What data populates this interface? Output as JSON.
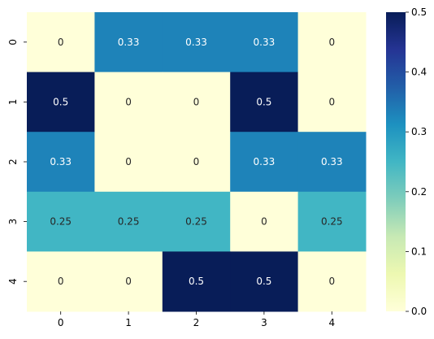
{
  "chart_data": {
    "type": "heatmap",
    "x_categories": [
      "0",
      "1",
      "2",
      "3",
      "4"
    ],
    "y_categories": [
      "0",
      "1",
      "2",
      "3",
      "4"
    ],
    "values": [
      [
        0,
        0.33,
        0.33,
        0.33,
        0
      ],
      [
        0.5,
        0,
        0,
        0.5,
        0
      ],
      [
        0.33,
        0,
        0,
        0.33,
        0.33
      ],
      [
        0.25,
        0.25,
        0.25,
        0,
        0.25
      ],
      [
        0,
        0,
        0.5,
        0.5,
        0
      ]
    ],
    "cell_labels": [
      [
        "0",
        "0.33",
        "0.33",
        "0.33",
        "0"
      ],
      [
        "0.5",
        "0",
        "0",
        "0.5",
        "0"
      ],
      [
        "0.33",
        "0",
        "0",
        "0.33",
        "0.33"
      ],
      [
        "0.25",
        "0.25",
        "0.25",
        "0",
        "0.25"
      ],
      [
        "0",
        "0",
        "0.5",
        "0.5",
        "0"
      ]
    ],
    "colorbar": {
      "min": 0.0,
      "max": 0.5,
      "ticks": [
        "0.0",
        "0.1",
        "0.2",
        "0.3",
        "0.4",
        "0.5"
      ],
      "colormap": "YlGnBu"
    },
    "title": "",
    "xlabel": "",
    "ylabel": "",
    "grid": false,
    "legend": "colorbar-right"
  }
}
